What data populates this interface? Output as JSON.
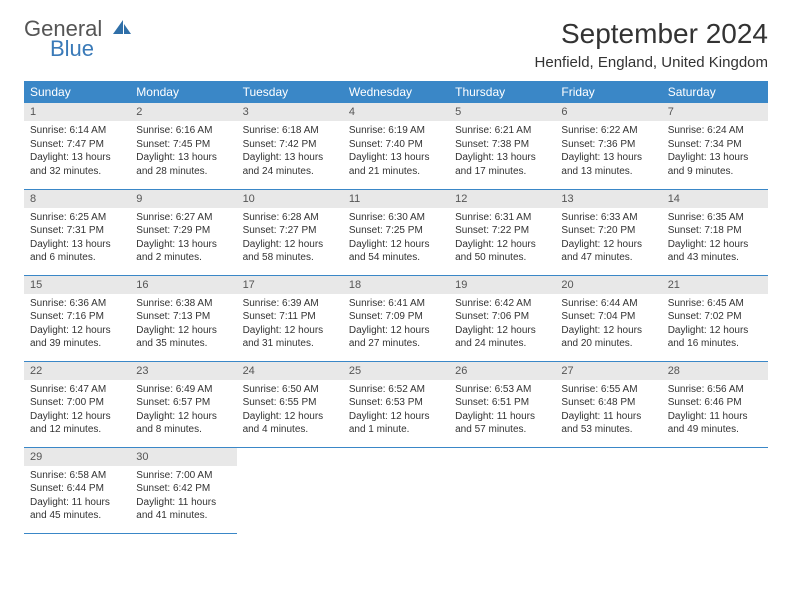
{
  "logo": {
    "top": "General",
    "bottom": "Blue",
    "icon_color": "#2f6fa8"
  },
  "title": "September 2024",
  "location": "Henfield, England, United Kingdom",
  "colors": {
    "header_bg": "#3a87c7",
    "header_text": "#ffffff",
    "daynum_bg": "#e8e8e8",
    "border": "#3a87c7",
    "text": "#333333"
  },
  "columns": [
    "Sunday",
    "Monday",
    "Tuesday",
    "Wednesday",
    "Thursday",
    "Friday",
    "Saturday"
  ],
  "weeks": [
    [
      {
        "num": "1",
        "sunrise": "Sunrise: 6:14 AM",
        "sunset": "Sunset: 7:47 PM",
        "daylight": "Daylight: 13 hours and 32 minutes."
      },
      {
        "num": "2",
        "sunrise": "Sunrise: 6:16 AM",
        "sunset": "Sunset: 7:45 PM",
        "daylight": "Daylight: 13 hours and 28 minutes."
      },
      {
        "num": "3",
        "sunrise": "Sunrise: 6:18 AM",
        "sunset": "Sunset: 7:42 PM",
        "daylight": "Daylight: 13 hours and 24 minutes."
      },
      {
        "num": "4",
        "sunrise": "Sunrise: 6:19 AM",
        "sunset": "Sunset: 7:40 PM",
        "daylight": "Daylight: 13 hours and 21 minutes."
      },
      {
        "num": "5",
        "sunrise": "Sunrise: 6:21 AM",
        "sunset": "Sunset: 7:38 PM",
        "daylight": "Daylight: 13 hours and 17 minutes."
      },
      {
        "num": "6",
        "sunrise": "Sunrise: 6:22 AM",
        "sunset": "Sunset: 7:36 PM",
        "daylight": "Daylight: 13 hours and 13 minutes."
      },
      {
        "num": "7",
        "sunrise": "Sunrise: 6:24 AM",
        "sunset": "Sunset: 7:34 PM",
        "daylight": "Daylight: 13 hours and 9 minutes."
      }
    ],
    [
      {
        "num": "8",
        "sunrise": "Sunrise: 6:25 AM",
        "sunset": "Sunset: 7:31 PM",
        "daylight": "Daylight: 13 hours and 6 minutes."
      },
      {
        "num": "9",
        "sunrise": "Sunrise: 6:27 AM",
        "sunset": "Sunset: 7:29 PM",
        "daylight": "Daylight: 13 hours and 2 minutes."
      },
      {
        "num": "10",
        "sunrise": "Sunrise: 6:28 AM",
        "sunset": "Sunset: 7:27 PM",
        "daylight": "Daylight: 12 hours and 58 minutes."
      },
      {
        "num": "11",
        "sunrise": "Sunrise: 6:30 AM",
        "sunset": "Sunset: 7:25 PM",
        "daylight": "Daylight: 12 hours and 54 minutes."
      },
      {
        "num": "12",
        "sunrise": "Sunrise: 6:31 AM",
        "sunset": "Sunset: 7:22 PM",
        "daylight": "Daylight: 12 hours and 50 minutes."
      },
      {
        "num": "13",
        "sunrise": "Sunrise: 6:33 AM",
        "sunset": "Sunset: 7:20 PM",
        "daylight": "Daylight: 12 hours and 47 minutes."
      },
      {
        "num": "14",
        "sunrise": "Sunrise: 6:35 AM",
        "sunset": "Sunset: 7:18 PM",
        "daylight": "Daylight: 12 hours and 43 minutes."
      }
    ],
    [
      {
        "num": "15",
        "sunrise": "Sunrise: 6:36 AM",
        "sunset": "Sunset: 7:16 PM",
        "daylight": "Daylight: 12 hours and 39 minutes."
      },
      {
        "num": "16",
        "sunrise": "Sunrise: 6:38 AM",
        "sunset": "Sunset: 7:13 PM",
        "daylight": "Daylight: 12 hours and 35 minutes."
      },
      {
        "num": "17",
        "sunrise": "Sunrise: 6:39 AM",
        "sunset": "Sunset: 7:11 PM",
        "daylight": "Daylight: 12 hours and 31 minutes."
      },
      {
        "num": "18",
        "sunrise": "Sunrise: 6:41 AM",
        "sunset": "Sunset: 7:09 PM",
        "daylight": "Daylight: 12 hours and 27 minutes."
      },
      {
        "num": "19",
        "sunrise": "Sunrise: 6:42 AM",
        "sunset": "Sunset: 7:06 PM",
        "daylight": "Daylight: 12 hours and 24 minutes."
      },
      {
        "num": "20",
        "sunrise": "Sunrise: 6:44 AM",
        "sunset": "Sunset: 7:04 PM",
        "daylight": "Daylight: 12 hours and 20 minutes."
      },
      {
        "num": "21",
        "sunrise": "Sunrise: 6:45 AM",
        "sunset": "Sunset: 7:02 PM",
        "daylight": "Daylight: 12 hours and 16 minutes."
      }
    ],
    [
      {
        "num": "22",
        "sunrise": "Sunrise: 6:47 AM",
        "sunset": "Sunset: 7:00 PM",
        "daylight": "Daylight: 12 hours and 12 minutes."
      },
      {
        "num": "23",
        "sunrise": "Sunrise: 6:49 AM",
        "sunset": "Sunset: 6:57 PM",
        "daylight": "Daylight: 12 hours and 8 minutes."
      },
      {
        "num": "24",
        "sunrise": "Sunrise: 6:50 AM",
        "sunset": "Sunset: 6:55 PM",
        "daylight": "Daylight: 12 hours and 4 minutes."
      },
      {
        "num": "25",
        "sunrise": "Sunrise: 6:52 AM",
        "sunset": "Sunset: 6:53 PM",
        "daylight": "Daylight: 12 hours and 1 minute."
      },
      {
        "num": "26",
        "sunrise": "Sunrise: 6:53 AM",
        "sunset": "Sunset: 6:51 PM",
        "daylight": "Daylight: 11 hours and 57 minutes."
      },
      {
        "num": "27",
        "sunrise": "Sunrise: 6:55 AM",
        "sunset": "Sunset: 6:48 PM",
        "daylight": "Daylight: 11 hours and 53 minutes."
      },
      {
        "num": "28",
        "sunrise": "Sunrise: 6:56 AM",
        "sunset": "Sunset: 6:46 PM",
        "daylight": "Daylight: 11 hours and 49 minutes."
      }
    ],
    [
      {
        "num": "29",
        "sunrise": "Sunrise: 6:58 AM",
        "sunset": "Sunset: 6:44 PM",
        "daylight": "Daylight: 11 hours and 45 minutes."
      },
      {
        "num": "30",
        "sunrise": "Sunrise: 7:00 AM",
        "sunset": "Sunset: 6:42 PM",
        "daylight": "Daylight: 11 hours and 41 minutes."
      },
      null,
      null,
      null,
      null,
      null
    ]
  ]
}
